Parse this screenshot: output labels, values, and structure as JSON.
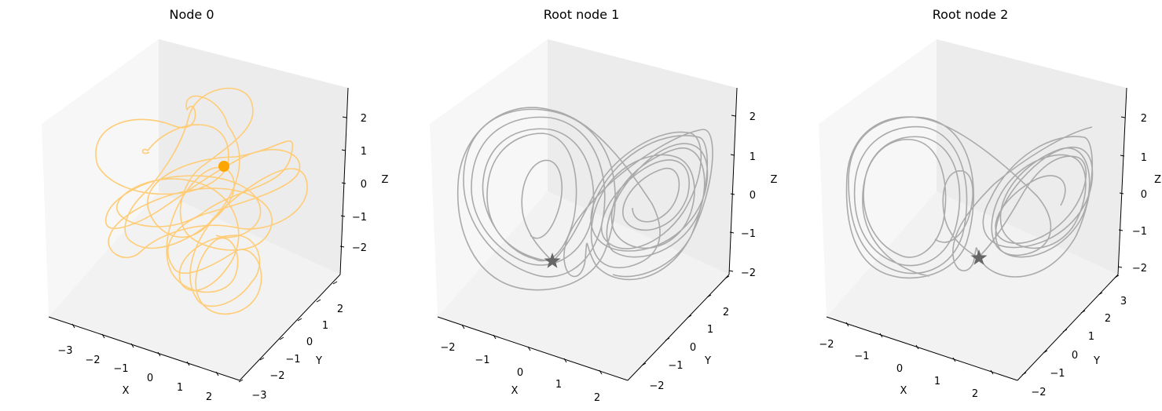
{
  "chart_data": [
    {
      "type": "line3d",
      "title": "Node 0",
      "xlabel": "X",
      "ylabel": "Y",
      "zlabel": "Z",
      "x_ticks": [
        "−3",
        "−2",
        "−1",
        "0",
        "1",
        "2"
      ],
      "y_ticks": [
        "−3",
        "−2",
        "−1",
        "0",
        "1",
        "2"
      ],
      "z_ticks": [
        "−2",
        "−1",
        "0",
        "1",
        "2"
      ],
      "series": [
        {
          "color": "#ffcc77",
          "style": "chaotic tangled trajectory"
        }
      ],
      "marker": {
        "shape": "circle",
        "color": "#ffa500"
      }
    },
    {
      "type": "line3d",
      "title": "Root node 1",
      "xlabel": "X",
      "ylabel": "Y",
      "zlabel": "Z",
      "x_ticks": [
        "−2",
        "−1",
        "0",
        "1",
        "2"
      ],
      "y_ticks": [
        "−2",
        "−1",
        "0",
        "1",
        "2"
      ],
      "z_ticks": [
        "−2",
        "−1",
        "0",
        "1",
        "2"
      ],
      "series": [
        {
          "color": "#aaaaaa",
          "style": "Lorenz butterfly attractor"
        }
      ],
      "marker": {
        "shape": "star",
        "color": "#666666"
      }
    },
    {
      "type": "line3d",
      "title": "Root node 2",
      "xlabel": "X",
      "ylabel": "Y",
      "zlabel": "Z",
      "x_ticks": [
        "−2",
        "−1",
        "0",
        "1",
        "2"
      ],
      "y_ticks": [
        "−2",
        "−1",
        "0",
        "1",
        "2",
        "3"
      ],
      "z_ticks": [
        "−2",
        "−1",
        "0",
        "1",
        "2"
      ],
      "series": [
        {
          "color": "#aaaaaa",
          "style": "Lorenz butterfly attractor"
        }
      ],
      "marker": {
        "shape": "star",
        "color": "#666666"
      }
    }
  ]
}
